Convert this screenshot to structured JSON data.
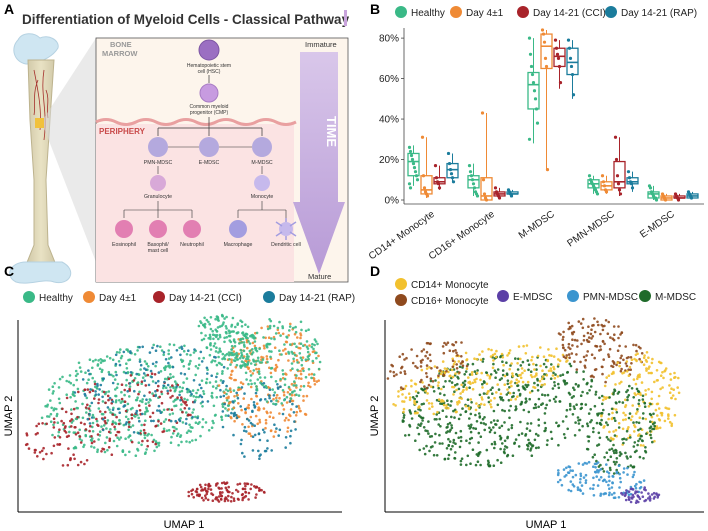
{
  "panels": {
    "a": "A",
    "b": "B",
    "c": "C",
    "d": "D"
  },
  "panel_a": {
    "title": "Differentiation of Myeloid Cells - Classical Pathway",
    "bone_marrow_label": [
      "BONE",
      "MARROW"
    ],
    "periphery_label": "PERIPHERY",
    "immature_label": "Immature",
    "mature_label": "Mature",
    "time_label": "TIME",
    "cells": {
      "hsc": [
        "Hematopoietic stem",
        "cell (HSC)"
      ],
      "cmp": [
        "Common myeloid",
        "progenitor (CMP)"
      ],
      "pmn_mdsc": "PMN-MDSC",
      "e_mdsc": "E-MDSC",
      "m_mdsc": "M-MDSC",
      "granulocyte": "Granulocyte",
      "monocyte": "Monocyte",
      "eosinophil": "Eosinophil",
      "basophil": [
        "Basophil/",
        "mast cell"
      ],
      "neutrophil": "Neutrophil",
      "macrophage": "Macrophage",
      "dendritic": "Dendritic cell"
    },
    "colors": {
      "hsc": "#9b6fc2",
      "cmp": "#c79be0",
      "mdsc": "#b4a9de",
      "granulocyte": "#d8a9d8",
      "pink": "#e27fb2",
      "monocyte": "#c6b9ec",
      "macrophage": "#a39de0"
    }
  },
  "groups": [
    {
      "name": "Healthy",
      "color": "#3ab987"
    },
    {
      "name": "Day 4±1",
      "color": "#ef8a35"
    },
    {
      "name": "Day 14-21 (CCI)",
      "color": "#a8232a"
    },
    {
      "name": "Day 14-21 (RAP)",
      "color": "#1b7c9c"
    }
  ],
  "chart_data": [
    {
      "type": "box",
      "panel": "B",
      "categories": [
        "CD14+ Monocyte",
        "CD16+ Monocyte",
        "M-MDSC",
        "PMN-MDSC",
        "E-MDSC"
      ],
      "yticks": [
        "0%",
        "20%",
        "40%",
        "60%",
        "80%"
      ],
      "ylim": [
        0,
        85
      ],
      "series": [
        {
          "name": "Healthy",
          "boxes": [
            [
              7,
              12,
              19,
              23,
              27
            ],
            [
              2,
              6,
              10,
              12,
              18
            ],
            [
              28,
              45,
              57,
              63,
              80
            ],
            [
              3,
              6,
              8,
              10,
              12
            ],
            [
              0,
              1,
              3,
              4,
              7
            ]
          ],
          "points": [
            [
              26,
              24,
              22,
              20,
              18,
              16,
              14,
              12,
              10,
              8,
              6
            ],
            [
              17,
              14,
              12,
              10,
              8,
              6,
              4,
              3,
              2
            ],
            [
              80,
              72,
              66,
              62,
              58,
              54,
              50,
              45,
              38,
              30
            ],
            [
              12,
              10,
              9,
              8,
              7,
              6,
              5,
              4,
              3
            ],
            [
              7,
              6,
              4,
              3,
              2,
              1,
              1,
              0
            ]
          ]
        },
        {
          "name": "Day 4±1",
          "boxes": [
            [
              1,
              3,
              5,
              12,
              31
            ],
            [
              0,
              0,
              2,
              11,
              43
            ],
            [
              15,
              65,
              76,
              82,
              84
            ],
            [
              3,
              5,
              7,
              9,
              12
            ],
            [
              0,
              0,
              1,
              2,
              3
            ]
          ],
          "points": [
            [
              31,
              12,
              6,
              4,
              3,
              2
            ],
            [
              43,
              10,
              3,
              1,
              0
            ],
            [
              84,
              82,
              78,
              70,
              66,
              15
            ],
            [
              12,
              9,
              7,
              5,
              4
            ],
            [
              3,
              2,
              1,
              0
            ]
          ]
        },
        {
          "name": "Day 14-21 (CCI)",
          "boxes": [
            [
              5,
              8,
              9,
              11,
              17
            ],
            [
              1,
              2,
              3,
              4,
              6
            ],
            [
              55,
              66,
              71,
              75,
              79
            ],
            [
              2,
              6,
              9,
              19,
              31
            ],
            [
              0,
              1,
              1,
              2,
              3
            ]
          ],
          "points": [
            [
              17,
              11,
              9,
              8,
              6
            ],
            [
              6,
              4,
              3,
              2,
              1
            ],
            [
              79,
              75,
              72,
              70,
              66,
              58
            ],
            [
              31,
              20,
              12,
              8,
              5,
              3
            ],
            [
              3,
              2,
              1,
              0
            ]
          ]
        },
        {
          "name": "Day 14-21 (RAP)",
          "boxes": [
            [
              9,
              11,
              15,
              18,
              23
            ],
            [
              2,
              3,
              3,
              4,
              5
            ],
            [
              50,
              62,
              68,
              75,
              79
            ],
            [
              4,
              8,
              9,
              11,
              14
            ],
            [
              1,
              1,
              2,
              3,
              4
            ]
          ],
          "points": [
            [
              23,
              18,
              15,
              13,
              11,
              9
            ],
            [
              5,
              4,
              3,
              2
            ],
            [
              79,
              75,
              70,
              66,
              62,
              52
            ],
            [
              14,
              11,
              9,
              8,
              6
            ],
            [
              4,
              3,
              2,
              1
            ]
          ]
        }
      ]
    },
    {
      "type": "scatter",
      "panel": "C",
      "xlabel": "UMAP 1",
      "ylabel": "UMAP 2",
      "legend": [
        "Healthy",
        "Day 4±1",
        "Day 14-21 (CCI)",
        "Day 14-21 (RAP)"
      ],
      "description": "UMAP embedding colored by condition"
    },
    {
      "type": "scatter",
      "panel": "D",
      "xlabel": "UMAP 1",
      "ylabel": "UMAP 2",
      "legend": [
        {
          "name": "CD14+ Monocyte",
          "color": "#f2c12e"
        },
        {
          "name": "CD16+ Monocyte",
          "color": "#8f4a1e"
        },
        {
          "name": "E-MDSC",
          "color": "#5b3fa6"
        },
        {
          "name": "PMN-MDSC",
          "color": "#3b95cf"
        },
        {
          "name": "M-MDSC",
          "color": "#1f6b2a"
        }
      ]
    }
  ]
}
